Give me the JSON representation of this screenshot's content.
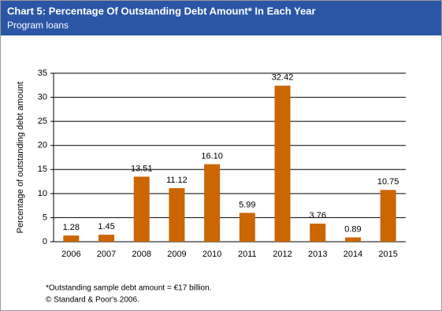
{
  "chart_data": {
    "type": "bar",
    "title": "Chart 5: Percentage Of Outstanding Debt Amount* In Each Year",
    "subtitle": "Program loans",
    "y_label": "Percentage of outstanding debt amount",
    "categories": [
      "2006",
      "2007",
      "2008",
      "2009",
      "2010",
      "2011",
      "2012",
      "2013",
      "2014",
      "2015"
    ],
    "values": [
      1.28,
      1.45,
      13.51,
      11.12,
      16.1,
      5.99,
      32.42,
      3.76,
      0.89,
      10.75
    ],
    "value_labels": [
      "1.28",
      "1.45",
      "13.51",
      "11.12",
      "16.10",
      "5.99",
      "32.42",
      "3.76",
      "0.89",
      "10.75"
    ],
    "color": "#cc6600",
    "ylim": [
      0,
      35
    ],
    "yticks": [
      0,
      5,
      10,
      15,
      20,
      25,
      30,
      35
    ],
    "grid": true,
    "footnotes": [
      "*Outstanding sample debt amount = €17 billion.",
      "© Standard & Poor's 2006."
    ]
  }
}
